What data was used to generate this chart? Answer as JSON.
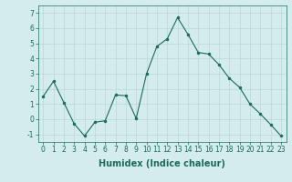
{
  "x": [
    0,
    1,
    2,
    3,
    4,
    5,
    6,
    7,
    8,
    9,
    10,
    11,
    12,
    13,
    14,
    15,
    16,
    17,
    18,
    19,
    20,
    21,
    22,
    23
  ],
  "y": [
    1.5,
    2.5,
    1.1,
    -0.3,
    -1.1,
    -0.2,
    -0.1,
    1.6,
    1.55,
    0.05,
    3.0,
    4.8,
    5.3,
    6.7,
    5.6,
    4.4,
    4.3,
    3.6,
    2.7,
    2.1,
    1.0,
    0.35,
    -0.35,
    -1.1
  ],
  "line_color": "#1a6b5a",
  "marker": "o",
  "markersize": 2,
  "linewidth": 0.8,
  "xlabel": "Humidex (Indice chaleur)",
  "ylim": [
    -1.5,
    7.5
  ],
  "xlim": [
    -0.5,
    23.5
  ],
  "yticks": [
    -1,
    0,
    1,
    2,
    3,
    4,
    5,
    6,
    7
  ],
  "xticks": [
    0,
    1,
    2,
    3,
    4,
    5,
    6,
    7,
    8,
    9,
    10,
    11,
    12,
    13,
    14,
    15,
    16,
    17,
    18,
    19,
    20,
    21,
    22,
    23
  ],
  "bg_color": "#d4ecec",
  "grid_color": "#b8d8d8",
  "tick_label_fontsize": 5.5,
  "xlabel_fontsize": 7,
  "xlabel_fontweight": "bold"
}
